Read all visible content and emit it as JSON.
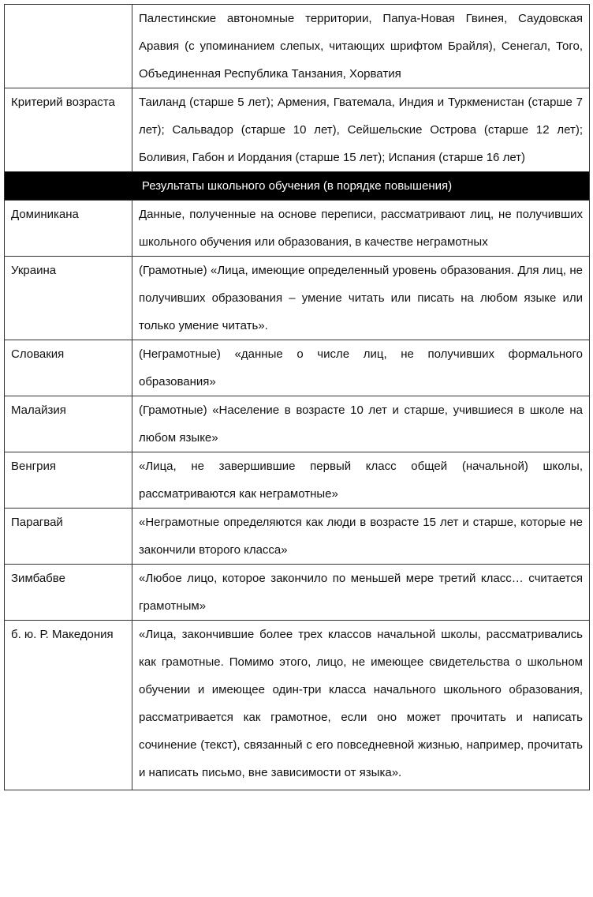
{
  "rows": [
    {
      "label": "",
      "text": "Палестинские автономные территории, Папуа-Новая Гвинея, Саудовская Аравия (с упоминанием слепых, читающих шрифтом Брайля), Сенегал, Того, Объединенная Республика Танзания, Хорватия"
    },
    {
      "label": "Критерий возраста",
      "text": "Таиланд (старше 5 лет); Армения, Гватемала, Индия и Туркменистан (старше 7 лет); Сальвадор (старше 10 лет), Сейшельские Острова (старше 12 лет); Боливия, Габон и Иордания (старше 15 лет); Испания (старше 16 лет)"
    }
  ],
  "section_header": "Результаты школьного обучения (в порядке повышения)",
  "section_rows": [
    {
      "label": "Доминикана",
      "text": "Данные, полученные на основе переписи, рассматривают лиц, не получивших школьного обучения или образования, в качестве неграмотных"
    },
    {
      "label": "Украина",
      "text": "(Грамотные) «Лица, имеющие определенный уровень образования. Для лиц, не получивших образования – умение читать или писать на любом языке или только умение читать»."
    },
    {
      "label": "Словакия",
      "text": "(Неграмотные) «данные о числе лиц, не получивших формального образования»"
    },
    {
      "label": "Малайзия",
      "text": "(Грамотные) «Население в возрасте 10 лет и старше, учившиеся в школе на любом языке»"
    },
    {
      "label": "Венгрия",
      "text": "«Лица, не завершившие первый класс общей (начальной) школы, рассматриваются как неграмотные»"
    },
    {
      "label": "Парагвай",
      "text": "«Неграмотные определяются как люди в возрасте 15 лет и старше, которые не закончили второго класса»"
    },
    {
      "label": "Зимбабве",
      "text": "«Любое лицо, которое закончило по меньшей мере третий класс… считается грамотным»"
    },
    {
      "label": "б. ю. Р. Македония",
      "text": "«Лица, закончившие более трех классов начальной школы, рассматривались как грамотные. Помимо этого, лицо, не имеющее свидетельства о школьном обучении и имеющее один-три класса начального школьного образования, рассматривается как грамотное, если оно может прочитать и написать сочинение (текст), связанный с его повседневной жизнью, например, прочитать и написать письмо, вне зависимости от языка»."
    }
  ]
}
